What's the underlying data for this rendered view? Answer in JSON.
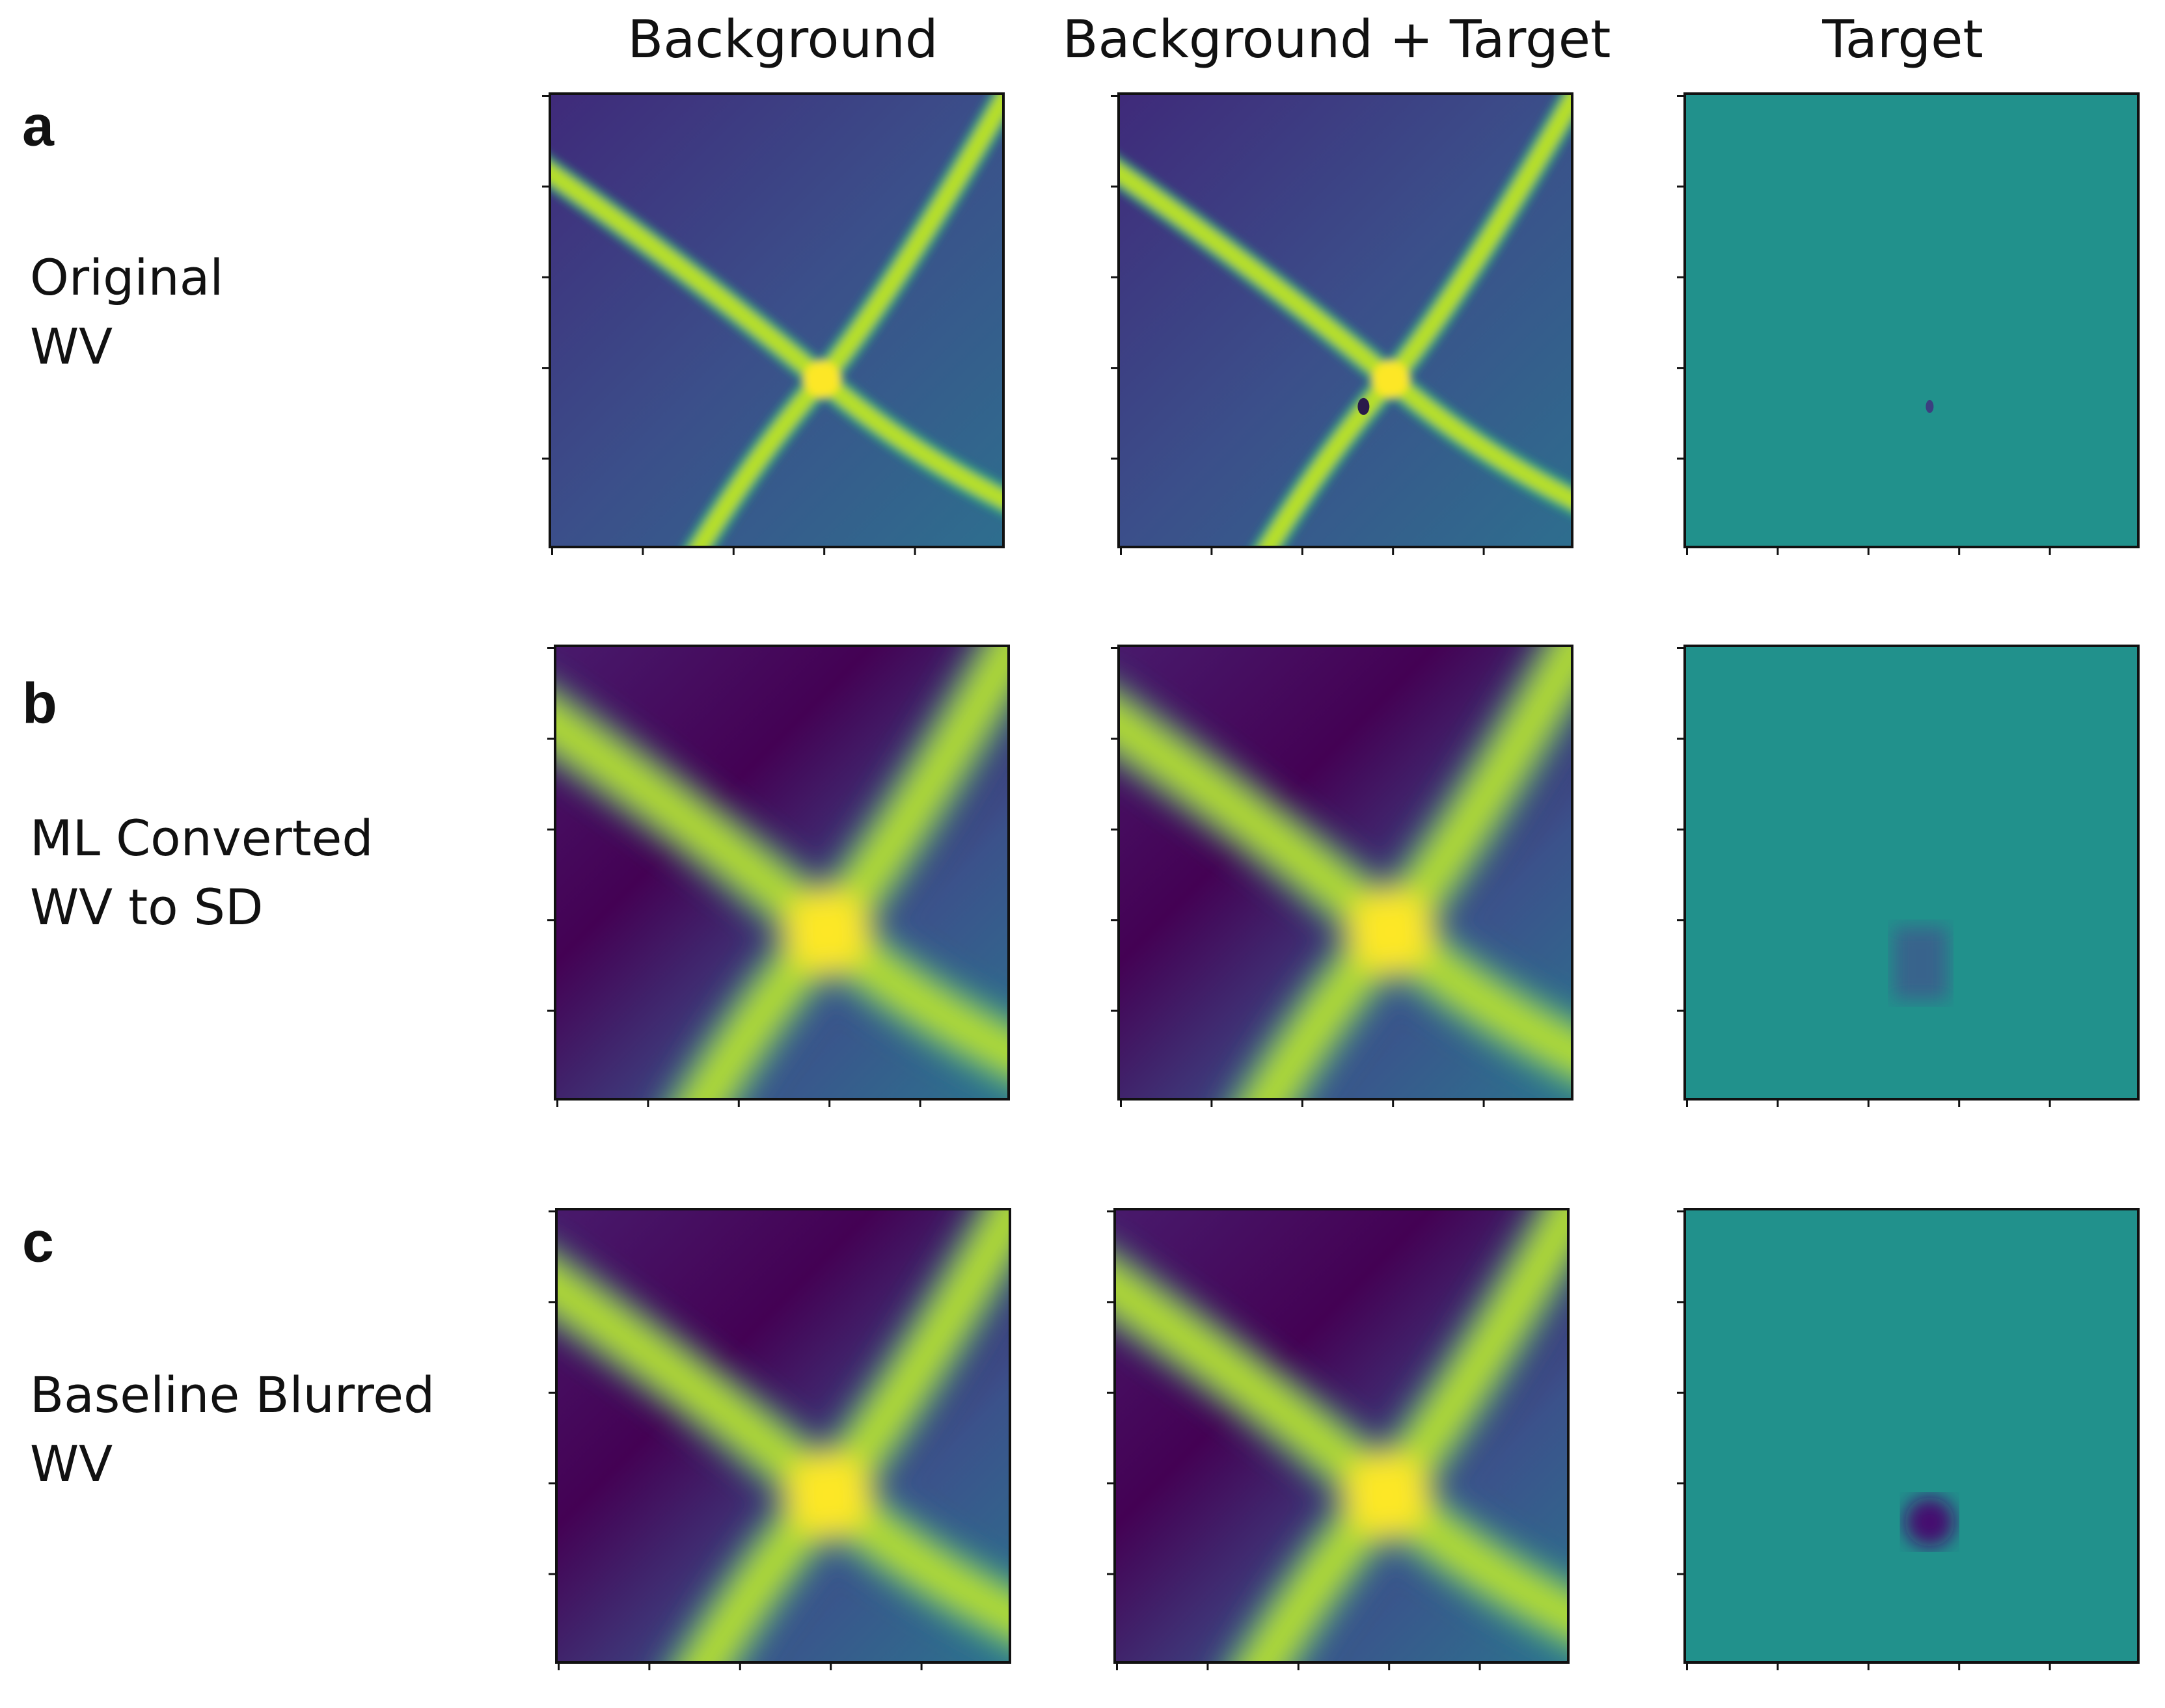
{
  "columns": [
    "Background",
    "Background + Target",
    "Target"
  ],
  "rows": [
    {
      "letter": "a",
      "label": [
        "Original",
        "WV"
      ]
    },
    {
      "letter": "b",
      "label": [
        "ML Converted",
        "WV to SD"
      ]
    },
    {
      "letter": "c",
      "label": [
        "Baseline Blurred",
        "WV"
      ]
    }
  ]
}
